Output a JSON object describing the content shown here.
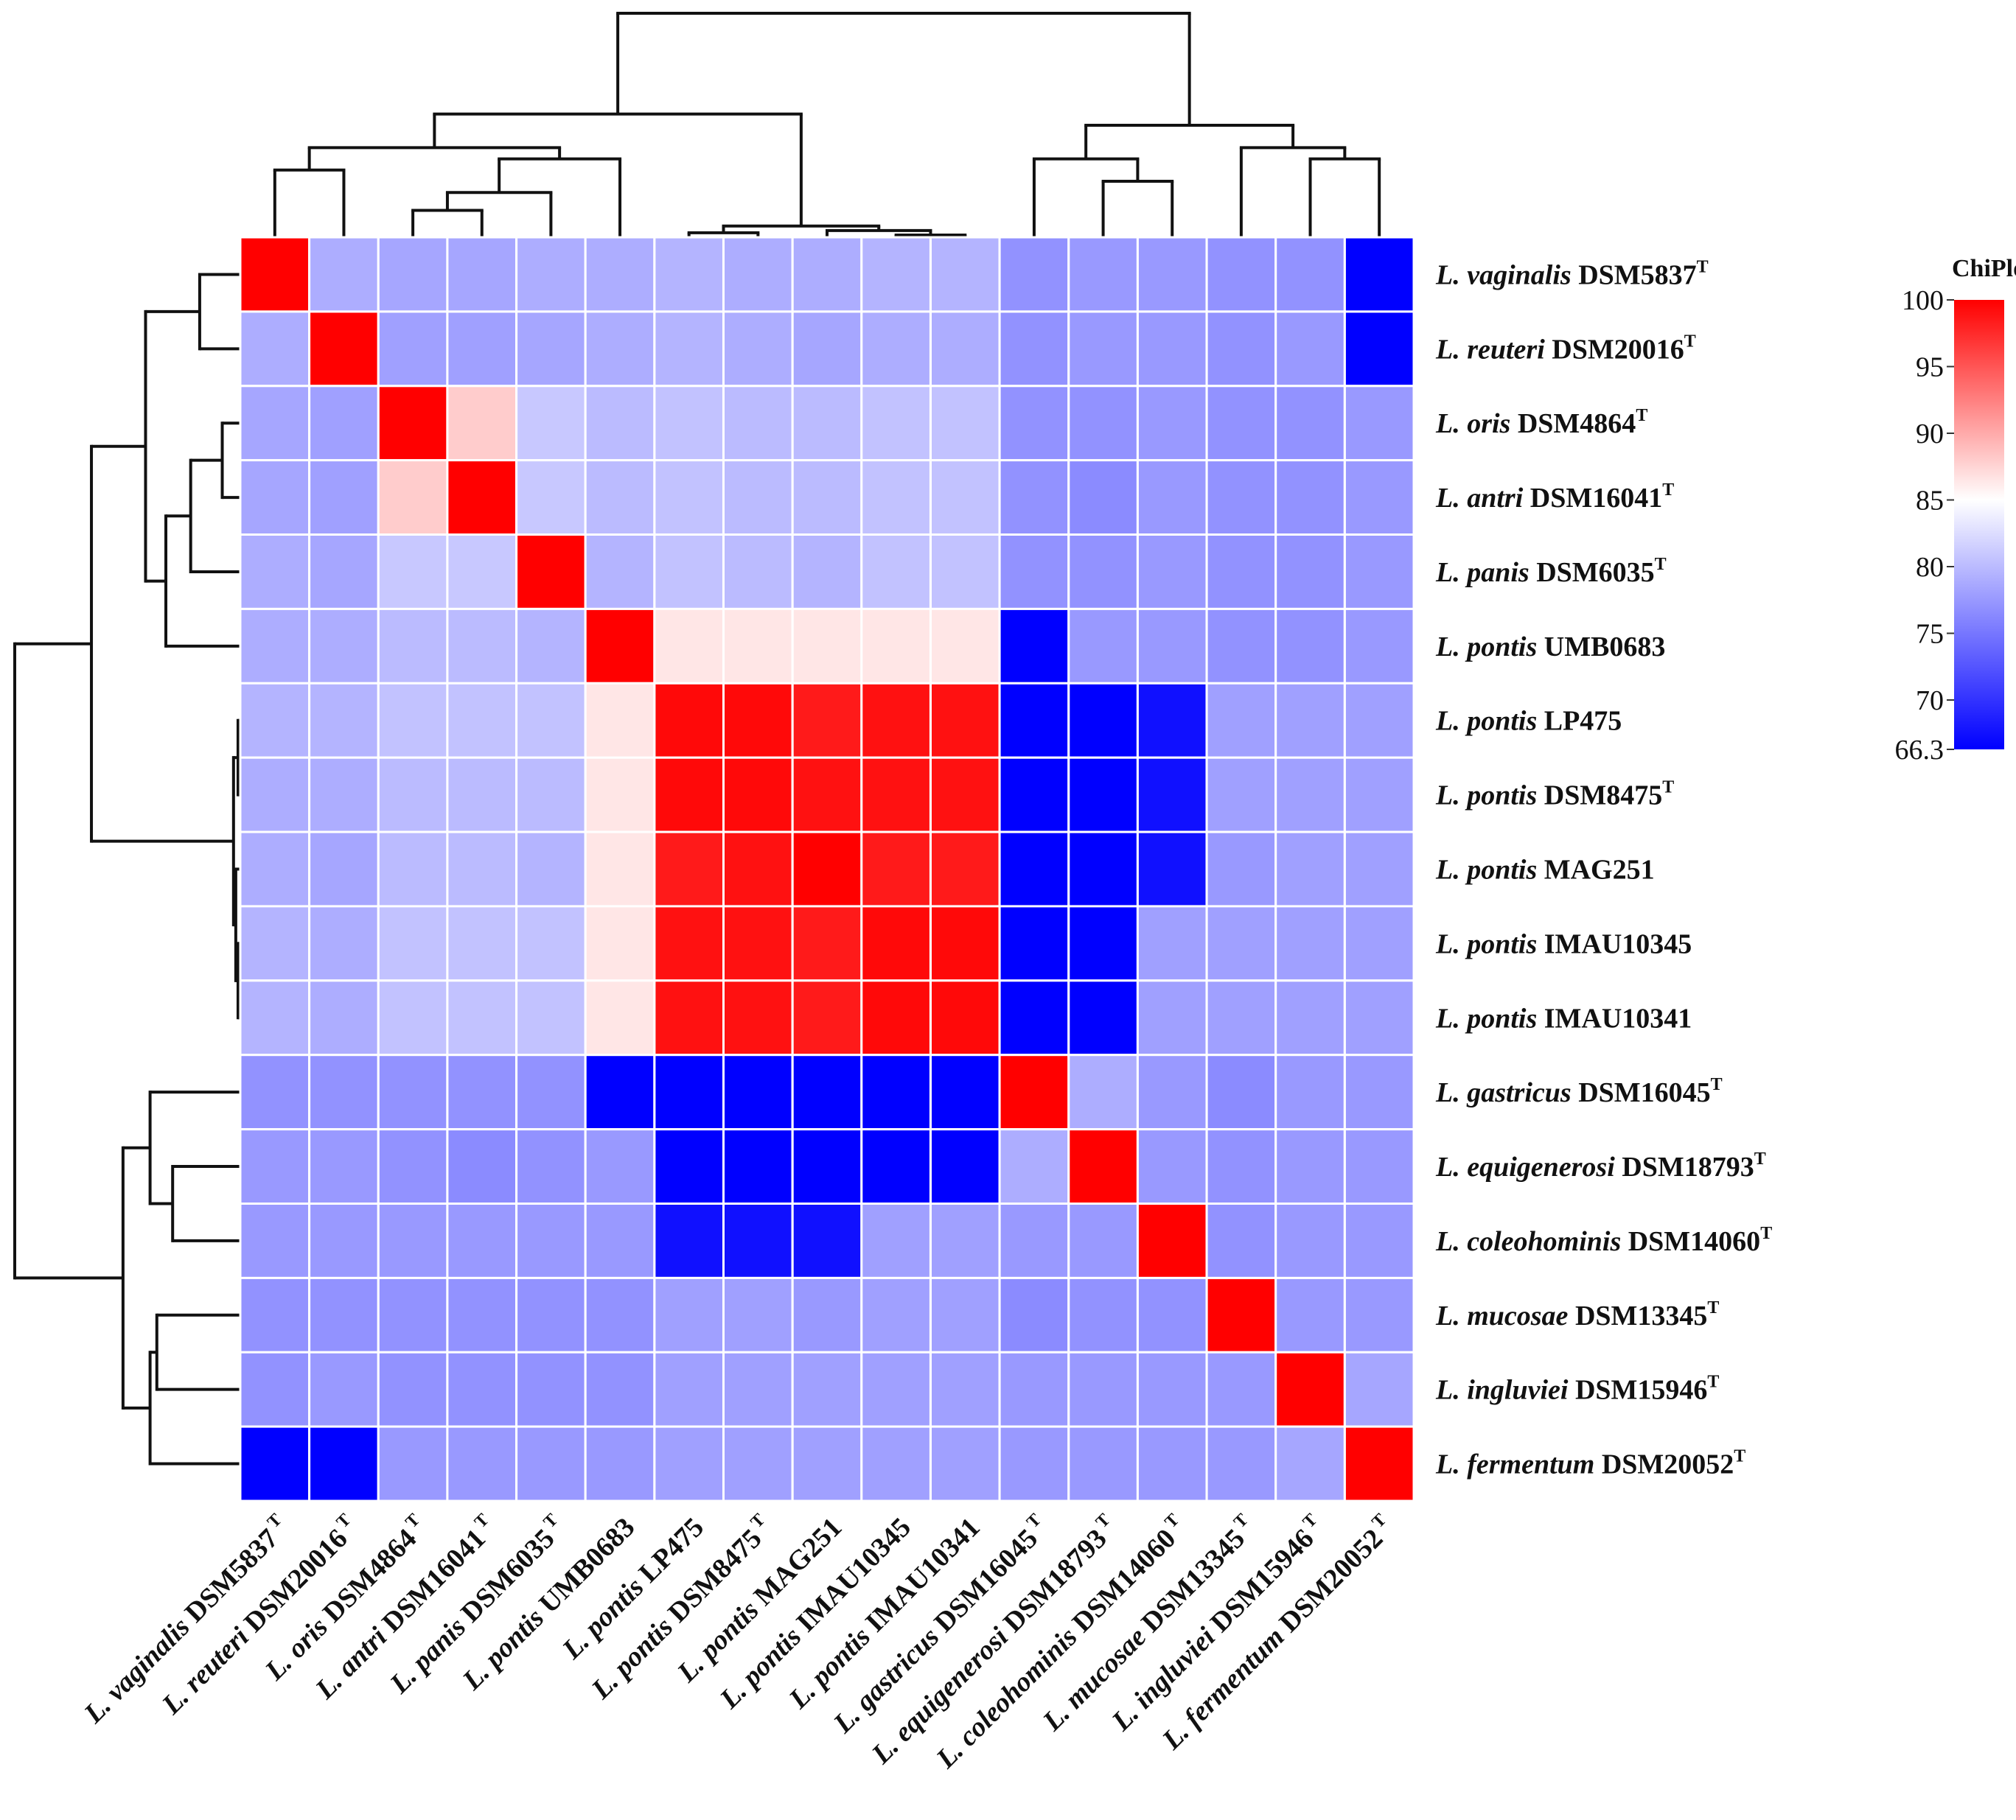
{
  "chart_data": {
    "type": "heatmap",
    "legend": {
      "title": "ChiPlot",
      "min": 66.3,
      "max": 100,
      "mid": 85,
      "ticks": [
        100,
        95,
        90,
        85,
        80,
        75,
        70,
        66.3
      ],
      "colors": {
        "low": "#0000ff",
        "mid": "#ffffff",
        "high": "#ff0000"
      },
      "placement": "right"
    },
    "labels": [
      {
        "species": "L. vaginalis",
        "strain": "DSM5837",
        "sup": "T"
      },
      {
        "species": "L. reuteri",
        "strain": "DSM20016",
        "sup": "T"
      },
      {
        "species": "L. oris",
        "strain": "DSM4864",
        "sup": "T"
      },
      {
        "species": "L. antri",
        "strain": "DSM16041",
        "sup": "T"
      },
      {
        "species": "L. panis",
        "strain": "DSM6035",
        "sup": "T"
      },
      {
        "species": "L. pontis",
        "strain": "UMB0683",
        "sup": ""
      },
      {
        "species": "L. pontis",
        "strain": "LP475",
        "sup": ""
      },
      {
        "species": "L. pontis",
        "strain": "DSM8475",
        "sup": "T"
      },
      {
        "species": "L. pontis",
        "strain": "MAG251",
        "sup": ""
      },
      {
        "species": "L. pontis",
        "strain": "IMAU10345",
        "sup": ""
      },
      {
        "species": "L. pontis",
        "strain": "IMAU10341",
        "sup": ""
      },
      {
        "species": "L. gastricus",
        "strain": "DSM16045",
        "sup": "T"
      },
      {
        "species": "L. equigenerosi",
        "strain": "DSM18793",
        "sup": "T"
      },
      {
        "species": "L. coleohominis",
        "strain": "DSM14060",
        "sup": "T"
      },
      {
        "species": "L. mucosae",
        "strain": "DSM13345",
        "sup": "T"
      },
      {
        "species": "L. ingluviei",
        "strain": "DSM15946",
        "sup": "T"
      },
      {
        "species": "L. fermentum",
        "strain": "DSM20052",
        "sup": "T"
      }
    ],
    "matrix": [
      [
        100,
        79,
        78.5,
        78.5,
        79,
        79,
        79.5,
        79,
        79,
        79.5,
        79.5,
        77,
        77.5,
        77.5,
        77,
        77,
        66.3
      ],
      [
        79,
        100,
        78,
        78,
        78.5,
        79,
        79.5,
        79,
        78.5,
        79,
        79,
        77,
        77.5,
        77.5,
        77,
        77.5,
        66.3
      ],
      [
        78.5,
        78,
        100,
        88,
        81,
        80,
        80.5,
        80,
        80,
        80.5,
        80.5,
        77,
        77,
        77.5,
        77,
        77,
        77.5
      ],
      [
        78.5,
        78,
        88,
        100,
        81,
        80,
        80.5,
        80,
        80,
        80.5,
        80.5,
        77,
        76.5,
        77.5,
        77,
        77,
        77.5
      ],
      [
        79,
        78.5,
        81,
        81,
        100,
        79.5,
        80.5,
        80,
        79.5,
        80.5,
        80.5,
        77,
        77,
        77.5,
        77,
        77,
        77.5
      ],
      [
        79,
        79,
        80,
        80,
        79.5,
        100,
        86.5,
        86.5,
        86.5,
        86.5,
        86.5,
        66.3,
        77.5,
        77.5,
        77,
        77,
        77.5
      ],
      [
        79.5,
        79.5,
        80.5,
        80.5,
        80.5,
        86.5,
        99.5,
        99.5,
        98.5,
        99,
        99,
        66.3,
        66.3,
        67.5,
        78,
        78,
        78
      ],
      [
        79,
        79,
        80,
        80,
        80,
        86.5,
        99.5,
        99.5,
        99,
        99,
        99,
        66.3,
        66.3,
        67.5,
        78,
        78,
        78
      ],
      [
        79,
        78.5,
        80,
        80,
        79.5,
        86.5,
        98.5,
        99,
        100,
        98.5,
        98.5,
        66.3,
        66.3,
        67.5,
        77.5,
        78,
        78
      ],
      [
        79.5,
        79,
        80.5,
        80.5,
        80.5,
        86.5,
        99,
        99,
        98.5,
        99.5,
        99.5,
        66.3,
        66.3,
        78,
        78,
        78,
        78
      ],
      [
        79.5,
        79,
        80.5,
        80.5,
        80.5,
        86.5,
        99,
        99,
        98.5,
        99.5,
        99.5,
        66.3,
        66.3,
        78,
        78,
        78,
        78
      ],
      [
        77,
        77,
        77,
        77,
        77,
        66.3,
        66.3,
        66.3,
        66.3,
        66.3,
        66.3,
        100,
        79,
        77.5,
        76.5,
        77.5,
        77.5
      ],
      [
        77.5,
        77.5,
        77,
        76.5,
        77,
        77.5,
        66.3,
        66.3,
        66.3,
        66.3,
        66.3,
        79,
        100,
        77.5,
        77,
        77.5,
        77.5
      ],
      [
        77.5,
        77.5,
        77.5,
        77.5,
        77.5,
        77.5,
        67.5,
        67.5,
        67.5,
        78,
        78,
        77.5,
        77.5,
        100,
        77,
        77.5,
        77.5
      ],
      [
        77,
        77,
        77,
        77,
        77,
        77,
        78,
        78,
        77.5,
        78,
        78,
        76.5,
        77,
        77,
        100,
        77.5,
        77.5
      ],
      [
        77,
        77.5,
        77,
        77,
        77,
        77,
        78,
        78,
        78,
        78,
        78,
        77.5,
        77.5,
        77.5,
        77.5,
        100,
        78.5
      ],
      [
        66.3,
        66.3,
        77.5,
        77.5,
        77.5,
        77.5,
        78,
        78,
        78,
        78,
        78,
        77.5,
        77.5,
        77.5,
        77.5,
        78.5,
        100
      ]
    ]
  }
}
